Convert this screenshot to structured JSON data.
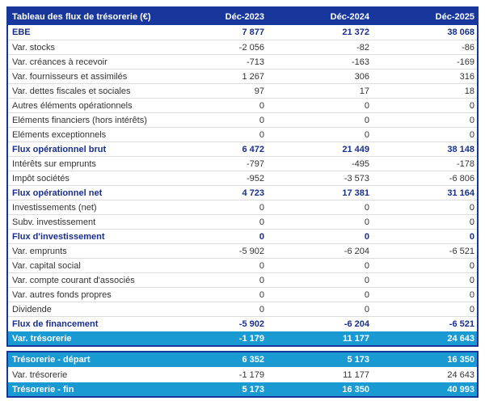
{
  "colors": {
    "header_background": "#17379C",
    "highlight_background": "#199AD3",
    "body_text": "#333333",
    "total_text": "#1A2E8C",
    "row_separator": "#DCDCDC"
  },
  "header": {
    "title": "Tableau des flux de trésorerie (€)",
    "columns": [
      "Déc-2023",
      "Déc-2024",
      "Déc-2025"
    ]
  },
  "rows": [
    {
      "label": "EBE",
      "values": [
        "7 877",
        "21 372",
        "38 068"
      ],
      "style": "total"
    },
    {
      "label": "Var. stocks",
      "values": [
        "-2 056",
        "-82",
        "-86"
      ],
      "style": "normal"
    },
    {
      "label": "Var. créances à recevoir",
      "values": [
        "-713",
        "-163",
        "-169"
      ],
      "style": "normal"
    },
    {
      "label": "Var. fournisseurs et assimilés",
      "values": [
        "1 267",
        "306",
        "316"
      ],
      "style": "normal"
    },
    {
      "label": "Var. dettes fiscales et sociales",
      "values": [
        "97",
        "17",
        "18"
      ],
      "style": "normal"
    },
    {
      "label": "Autres éléments opérationnels",
      "values": [
        "0",
        "0",
        "0"
      ],
      "style": "normal"
    },
    {
      "label": "Eléments financiers (hors intérêts)",
      "values": [
        "0",
        "0",
        "0"
      ],
      "style": "normal"
    },
    {
      "label": "Eléments exceptionnels",
      "values": [
        "0",
        "0",
        "0"
      ],
      "style": "normal"
    },
    {
      "label": "Flux opérationnel brut",
      "values": [
        "6 472",
        "21 449",
        "38 148"
      ],
      "style": "total"
    },
    {
      "label": "Intérêts sur emprunts",
      "values": [
        "-797",
        "-495",
        "-178"
      ],
      "style": "normal"
    },
    {
      "label": "Impôt sociétés",
      "values": [
        "-952",
        "-3 573",
        "-6 806"
      ],
      "style": "normal"
    },
    {
      "label": "Flux opérationnel net",
      "values": [
        "4 723",
        "17 381",
        "31 164"
      ],
      "style": "total"
    },
    {
      "label": "Investissements (net)",
      "values": [
        "0",
        "0",
        "0"
      ],
      "style": "normal"
    },
    {
      "label": "Subv. investissement",
      "values": [
        "0",
        "0",
        "0"
      ],
      "style": "normal"
    },
    {
      "label": "Flux d'investissement",
      "values": [
        "0",
        "0",
        "0"
      ],
      "style": "total"
    },
    {
      "label": "Var. emprunts",
      "values": [
        "-5 902",
        "-6 204",
        "-6 521"
      ],
      "style": "normal"
    },
    {
      "label": "Var. capital social",
      "values": [
        "0",
        "0",
        "0"
      ],
      "style": "normal"
    },
    {
      "label": "Var. compte courant d'associés",
      "values": [
        "0",
        "0",
        "0"
      ],
      "style": "normal"
    },
    {
      "label": "Var. autres fonds propres",
      "values": [
        "0",
        "0",
        "0"
      ],
      "style": "normal"
    },
    {
      "label": "Dividende",
      "values": [
        "0",
        "0",
        "0"
      ],
      "style": "normal"
    },
    {
      "label": "Flux de financement",
      "values": [
        "-5 902",
        "-6 204",
        "-6 521"
      ],
      "style": "total"
    },
    {
      "label": "Var. trésorerie",
      "values": [
        "-1 179",
        "11 177",
        "24 643"
      ],
      "style": "highlight"
    }
  ],
  "summary_rows": [
    {
      "label": "Trésorerie - départ",
      "values": [
        "6 352",
        "5 173",
        "16 350"
      ],
      "style": "highlight"
    },
    {
      "label": "Var. trésorerie",
      "values": [
        "-1 179",
        "11 177",
        "24 643"
      ],
      "style": "normal"
    },
    {
      "label": "Trésorerie - fin",
      "values": [
        "5 173",
        "16 350",
        "40 993"
      ],
      "style": "highlight"
    }
  ]
}
